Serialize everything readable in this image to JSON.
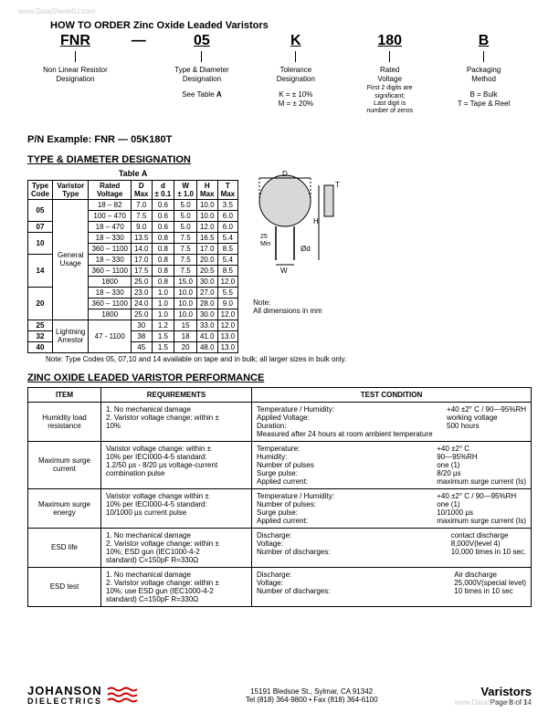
{
  "watermark_tl": "www.DataSheet4U.com",
  "watermark_br": "www.DataSheet4U.com",
  "main_title": "HOW TO ORDER Zinc Oxide Leaded Varistors",
  "order": {
    "c1": {
      "code": "FNR",
      "desc": "Non Linear Resistor\nDesignation"
    },
    "dash": "—",
    "c2": {
      "code": "05",
      "desc": "Type & Diameter\nDesignation",
      "sub": "See Table A"
    },
    "c3": {
      "code": "K",
      "desc": "Tolerance\nDesignation",
      "sub": "K = ± 10%\nM = ± 20%"
    },
    "c4": {
      "code": "180",
      "desc": "Rated\nVoltage",
      "sub": "First 2 digits are\nsignificant;\nLast digit is\nnumber of zeros"
    },
    "c5": {
      "code": "B",
      "desc": "Packaging\nMethod",
      "sub": "B = Bulk\nT = Tape & Reel"
    }
  },
  "pn_example": "P/N Example:   FNR — 05K180T",
  "type_diam_title": "TYPE & DIAMETER DESIGNATION",
  "tableA_caption": "Table A",
  "tableA": {
    "headers": [
      "Type\nCode",
      "Varistor\nType",
      "Rated\nVoltage",
      "D\nMax",
      "d\n± 0.1",
      "W\n± 1.0",
      "H\nMax",
      "T\nMax"
    ],
    "rows": [
      [
        "05",
        "General\nUsage",
        "18 – 82",
        "7.0",
        "0.6",
        "5.0",
        "10.0",
        "3.5"
      ],
      [
        "",
        "",
        "100 – 470",
        "7.5",
        "0.6",
        "5.0",
        "10.0",
        "6.0"
      ],
      [
        "07",
        "",
        "18 – 470",
        "9.0",
        "0.6",
        "5.0",
        "12.0",
        "6.0"
      ],
      [
        "10",
        "",
        "18 – 330",
        "13.5",
        "0.8",
        "7.5",
        "16.5",
        "5.4"
      ],
      [
        "",
        "",
        "360 – 1100",
        "14.0",
        "0.8",
        "7.5",
        "17.0",
        "8.5"
      ],
      [
        "14",
        "",
        "18 – 330",
        "17.0",
        "0.8",
        "7.5",
        "20.0",
        "5.4"
      ],
      [
        "",
        "",
        "360 – 1100",
        "17.5",
        "0.8",
        "7.5",
        "20.5",
        "8.5"
      ],
      [
        "",
        "",
        "1800",
        "25.0",
        "0.8",
        "15.0",
        "30.0",
        "12.0"
      ],
      [
        "20",
        "",
        "18 – 330",
        "23.0",
        "1.0",
        "10.0",
        "27.0",
        "5.5"
      ],
      [
        "",
        "",
        "360 – 1100",
        "24.0",
        "1.0",
        "10.0",
        "28.0",
        "9.0"
      ],
      [
        "",
        "",
        "1800",
        "25.0",
        "1.0",
        "10.0",
        "30.0",
        "12.0"
      ],
      [
        "25",
        "Lightning\nArrestor",
        "47 - 1100",
        "30",
        "1.2",
        "15",
        "33.0",
        "12.0"
      ],
      [
        "32",
        "",
        "",
        "38",
        "1.5",
        "18",
        "41.0",
        "13.0"
      ],
      [
        "40",
        "",
        "",
        "45",
        "1.5",
        "20",
        "48.0",
        "13.0"
      ]
    ]
  },
  "diagram_note": "Note:\nAll dimensions in mm",
  "diagram_labels": {
    "D": "D",
    "T": "T",
    "H": "H",
    "d": "Ød",
    "W": "W"
  },
  "note_line": "Note:   Type Codes 05, 07,10 and 14 available on tape and in bulk; all larger sizes in bulk only.",
  "perf_title": "ZINC OXIDE LEADED VARISTOR PERFORMANCE",
  "perf": {
    "headers": [
      "ITEM",
      "REQUIREMENTS",
      "TEST CONDITION"
    ],
    "rows": [
      {
        "item": "Humidity load\nresistance",
        "req": "1. No mechanical damage\n2. Varistor voltage change: within ±\n    10%",
        "tc_l": "Temperature / Humidity:\nApplied Voltage:\nDuration:\nMeasured after 24 hours at room ambient temperature",
        "tc_r": "+40 ±2° C / 90—95%RH\nworking voltage\n500 hours\n "
      },
      {
        "item": "Maximum surge\ncurrent",
        "req": "Varistor voltage change: within ±\n10% per IECI000-4-5 standard:\n1.2/50 µs - 8/20 µs voltage-current\ncombination pulse",
        "tc_l": "Temperature:\nHumidity:\nNumber of pulses\nSurge pulse:\nApplied current:",
        "tc_r": "+40 ±2° C\n90—95%RH\none (1)\n8/20 µs\nmaximum surge current (Is)"
      },
      {
        "item": "Maximum surge\nenergy",
        "req": "Varistor voltage change within ±\n10% per IECI000-4-5 standard:\n10/1000 µs current pulse",
        "tc_l": "Temperature / Humidity:\nNumber of pulses:\nSurge pulse:\nApplied current:",
        "tc_r": "+40 ±2° C / 90—95%RH\none (1)\n10/1000 µs\nmaximum surge current (Is)"
      },
      {
        "item": "ESD life",
        "req": "1. No mechanical damage\n2. Varistor voltage change: within ±\n    10%; ESD gun (IEC1000-4-2\n    standard) C=150pF R=330Ω",
        "tc_l": "Discharge:\nVoltage:\nNumber of discharges:",
        "tc_r": "contact discharge\n8,000V(level 4)\n10,000 times in 10 sec."
      },
      {
        "item": "ESD test",
        "req": "1. No mechanical damage\n2. Varistor voltage change: within ±\n    10%; use ESD gun (IEC1000-4-2\n    standard) C=150pF R=330Ω",
        "tc_l": "Discharge:\nVoltage:\nNumber of discharges:",
        "tc_r": "Air discharge\n25,000V(special level)\n10 times in 10 sec"
      }
    ]
  },
  "footer": {
    "logo1": "JOHANSON",
    "logo2": "DIELECTRICS",
    "addr": "15191 Bledsoe St., Sylmar, CA 91342",
    "tel": "Tel (818) 364-9800 • Fax (818) 364-6100",
    "right_title": "Varistors",
    "right_page": "Page 8 of  14"
  },
  "colors": {
    "text": "#000000",
    "background": "#ffffff",
    "watermark": "#cccccc",
    "disc": "#d0d0d0"
  }
}
